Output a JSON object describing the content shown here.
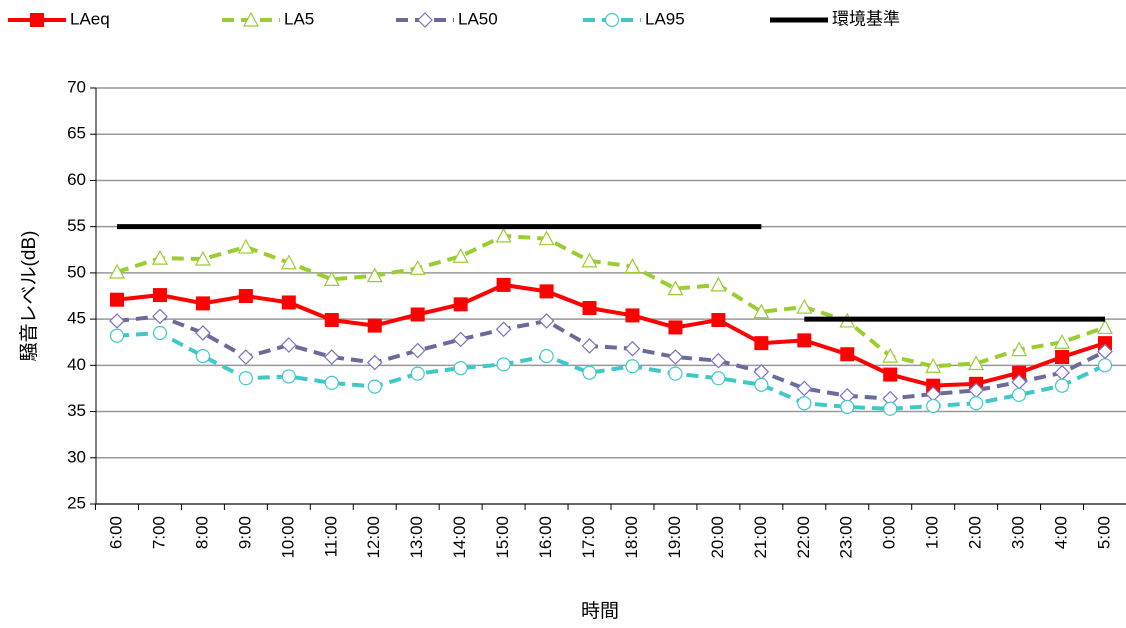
{
  "chart_data": {
    "type": "line",
    "x_label": "時間",
    "y_label": "騒音レベル(dB)",
    "categories": [
      "6:00",
      "7:00",
      "8:00",
      "9:00",
      "10:00",
      "11:00",
      "12:00",
      "13:00",
      "14:00",
      "15:00",
      "16:00",
      "17:00",
      "18:00",
      "19:00",
      "20:00",
      "21:00",
      "22:00",
      "23:00",
      "0:00",
      "1:00",
      "2:00",
      "3:00",
      "4:00",
      "5:00"
    ],
    "ylim": [
      25,
      70
    ],
    "yticks": [
      25,
      30,
      35,
      40,
      45,
      50,
      55,
      60,
      65,
      70
    ],
    "grid": true,
    "series": [
      {
        "name": "LAeq",
        "color": "#ff0000",
        "marker": "square",
        "dash": false,
        "values": [
          47.1,
          47.6,
          46.7,
          47.5,
          46.8,
          44.9,
          44.3,
          45.5,
          46.6,
          48.7,
          48.0,
          46.2,
          45.4,
          44.1,
          44.9,
          42.4,
          42.7,
          41.2,
          39.0,
          37.8,
          38.0,
          39.2,
          40.9,
          42.4
        ]
      },
      {
        "name": "LA5",
        "color": "#9acd32",
        "marker": "triangle",
        "dash": true,
        "values": [
          50.1,
          51.6,
          51.5,
          52.8,
          51.1,
          49.3,
          49.7,
          50.5,
          51.8,
          54.0,
          53.7,
          51.3,
          50.7,
          48.3,
          48.7,
          45.8,
          46.3,
          44.8,
          41.0,
          39.9,
          40.2,
          41.7,
          42.5,
          44.1
        ]
      },
      {
        "name": "LA50",
        "color": "#6b6b9a",
        "marker": "diamond",
        "dash": true,
        "values": [
          44.8,
          45.3,
          43.5,
          40.9,
          42.2,
          40.9,
          40.3,
          41.6,
          42.8,
          43.9,
          44.8,
          42.1,
          41.8,
          40.9,
          40.5,
          39.3,
          37.5,
          36.7,
          36.4,
          36.9,
          37.3,
          38.2,
          39.2,
          41.5
        ]
      },
      {
        "name": "LA95",
        "color": "#40c8c8",
        "marker": "circle",
        "dash": true,
        "values": [
          43.2,
          43.5,
          41.0,
          38.6,
          38.8,
          38.1,
          37.7,
          39.1,
          39.7,
          40.1,
          41.0,
          39.2,
          39.9,
          39.1,
          38.6,
          37.9,
          35.9,
          35.5,
          35.3,
          35.6,
          35.9,
          36.8,
          37.8,
          40.0
        ]
      },
      {
        "name": "環境基準",
        "color": "#000000",
        "marker": "none",
        "dash": false,
        "width": 5,
        "values": [
          55,
          55,
          55,
          55,
          55,
          55,
          55,
          55,
          55,
          55,
          55,
          55,
          55,
          55,
          55,
          55,
          45,
          45,
          45,
          45,
          45,
          45,
          45,
          45
        ]
      }
    ]
  }
}
